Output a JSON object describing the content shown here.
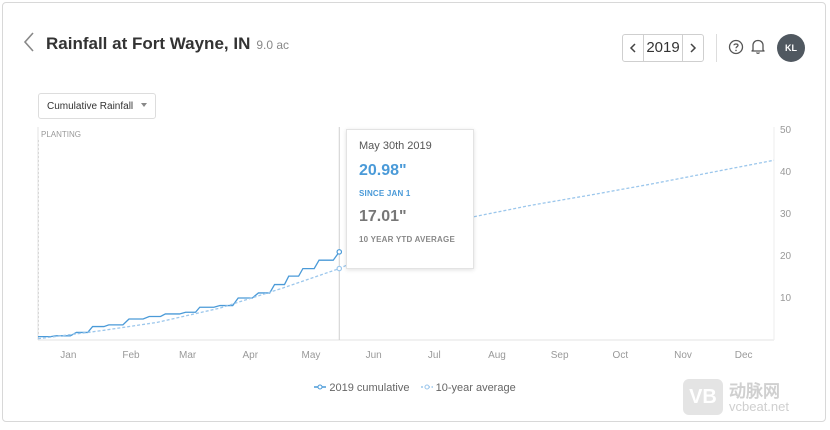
{
  "header": {
    "title": "Rainfall at Fort Wayne, IN",
    "acreage": "9.0 ac",
    "year": "2019",
    "avatar_initials": "KL"
  },
  "dropdown": {
    "selected": "Cumulative Rainfall"
  },
  "tooltip": {
    "date": "May 30th 2019",
    "value_2019": "20.98\"",
    "label_2019": "SINCE JAN 1",
    "value_avg": "17.01\"",
    "label_avg": "10 YEAR YTD AVERAGE"
  },
  "legend": {
    "series1": "2019 cumulative",
    "series2": "10-year average"
  },
  "watermark": {
    "cn": "动脉网",
    "en": "vcbeat.net",
    "logo": "VB"
  },
  "chart_data": {
    "type": "line",
    "region_label": "PLANTING",
    "x_ticks": [
      "Jan",
      "Feb",
      "Mar",
      "Apr",
      "May",
      "Jun",
      "Jul",
      "Aug",
      "Sep",
      "Oct",
      "Nov",
      "Dec"
    ],
    "y_ticks": [
      10,
      20,
      30,
      40,
      50
    ],
    "ylim": [
      0,
      50
    ],
    "grid": false,
    "legend_position": "bottom",
    "colors": {
      "series_2019": "#4a9ad8",
      "series_avg": "#9cc7ec"
    },
    "series": [
      {
        "name": "2019 cumulative",
        "style": "solid",
        "points": [
          [
            "Jan 1",
            0.8
          ],
          [
            "Jan 10",
            1.0
          ],
          [
            "Jan 20",
            1.8
          ],
          [
            "Jan 28",
            3.2
          ],
          [
            "Feb 5",
            3.6
          ],
          [
            "Feb 15",
            5.0
          ],
          [
            "Feb 25",
            5.6
          ],
          [
            "Mar 5",
            6.2
          ],
          [
            "Mar 15",
            6.6
          ],
          [
            "Mar 22",
            7.8
          ],
          [
            "Apr 1",
            8.2
          ],
          [
            "Apr 10",
            10.0
          ],
          [
            "Apr 20",
            11.2
          ],
          [
            "Apr 28",
            13.2
          ],
          [
            "May 5",
            15.2
          ],
          [
            "May 12",
            17.0
          ],
          [
            "May 20",
            19.0
          ],
          [
            "May 30",
            20.98
          ]
        ]
      },
      {
        "name": "10-year average",
        "style": "dashed",
        "points": [
          [
            "Jan 1",
            0.3
          ],
          [
            "Feb 1",
            2.2
          ],
          [
            "Mar 1",
            4.2
          ],
          [
            "Apr 1",
            7.6
          ],
          [
            "May 1",
            12.2
          ],
          [
            "May 30",
            17.01
          ],
          [
            "Jul 1",
            24.0
          ],
          [
            "Aug 1",
            29.0
          ],
          [
            "Sep 1",
            32.0
          ],
          [
            "Oct 1",
            34.5
          ],
          [
            "Nov 1",
            37.2
          ],
          [
            "Dec 1",
            40.0
          ],
          [
            "Dec 31",
            42.8
          ]
        ]
      }
    ]
  }
}
